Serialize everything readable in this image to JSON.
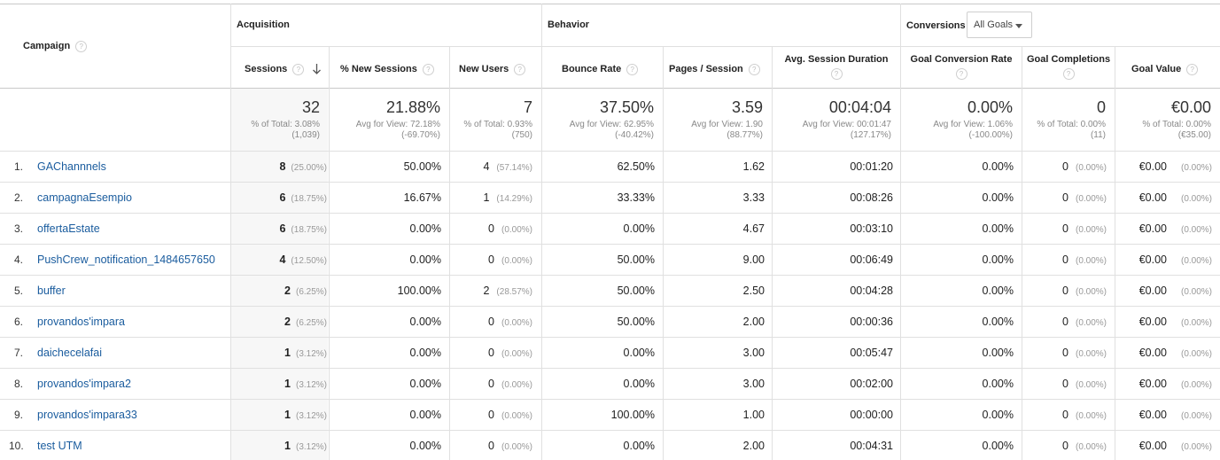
{
  "headers": {
    "campaign": "Campaign",
    "acquisition": "Acquisition",
    "behavior": "Behavior",
    "conversions": "Conversions",
    "goal_dropdown": "All Goals",
    "sessions": "Sessions",
    "new_sessions": "% New Sessions",
    "new_users": "New Users",
    "bounce_rate": "Bounce Rate",
    "pages_session": "Pages / Session",
    "avg_duration": "Avg. Session Duration",
    "goal_conv_rate": "Goal Conversion Rate",
    "goal_completions": "Goal Completions",
    "goal_value": "Goal Value"
  },
  "summary": {
    "sessions": {
      "value": "32",
      "line1": "% of Total: 3.08%",
      "line2": "(1,039)"
    },
    "new_sessions": {
      "value": "21.88%",
      "line1": "Avg for View: 72.18%",
      "line2": "(-69.70%)"
    },
    "new_users": {
      "value": "7",
      "line1": "% of Total: 0.93%",
      "line2": "(750)"
    },
    "bounce_rate": {
      "value": "37.50%",
      "line1": "Avg for View: 62.95%",
      "line2": "(-40.42%)"
    },
    "pages_session": {
      "value": "3.59",
      "line1": "Avg for View: 1.90",
      "line2": "(88.77%)"
    },
    "avg_duration": {
      "value": "00:04:04",
      "line1": "Avg for View: 00:01:47",
      "line2": "(127.17%)"
    },
    "goal_conv_rate": {
      "value": "0.00%",
      "line1": "Avg for View: 1.06%",
      "line2": "(-100.00%)"
    },
    "goal_completions": {
      "value": "0",
      "line1": "% of Total: 0.00%",
      "line2": "(11)"
    },
    "goal_value": {
      "value": "€0.00",
      "line1": "% of Total: 0.00%",
      "line2": "(€35.00)"
    }
  },
  "rows": [
    {
      "num": "1.",
      "campaign": "GAChannnels",
      "sessions": "8",
      "sessions_pct": "(25.00%)",
      "new_sessions": "50.00%",
      "new_users": "4",
      "new_users_pct": "(57.14%)",
      "bounce_rate": "62.50%",
      "pages_session": "1.62",
      "avg_duration": "00:01:20",
      "goal_conv_rate": "0.00%",
      "goal_completions": "0",
      "goal_completions_pct": "(0.00%)",
      "goal_value": "€0.00",
      "goal_value_pct": "(0.00%)"
    },
    {
      "num": "2.",
      "campaign": "campagnaEsempio",
      "sessions": "6",
      "sessions_pct": "(18.75%)",
      "new_sessions": "16.67%",
      "new_users": "1",
      "new_users_pct": "(14.29%)",
      "bounce_rate": "33.33%",
      "pages_session": "3.33",
      "avg_duration": "00:08:26",
      "goal_conv_rate": "0.00%",
      "goal_completions": "0",
      "goal_completions_pct": "(0.00%)",
      "goal_value": "€0.00",
      "goal_value_pct": "(0.00%)"
    },
    {
      "num": "3.",
      "campaign": "offertaEstate",
      "sessions": "6",
      "sessions_pct": "(18.75%)",
      "new_sessions": "0.00%",
      "new_users": "0",
      "new_users_pct": "(0.00%)",
      "bounce_rate": "0.00%",
      "pages_session": "4.67",
      "avg_duration": "00:03:10",
      "goal_conv_rate": "0.00%",
      "goal_completions": "0",
      "goal_completions_pct": "(0.00%)",
      "goal_value": "€0.00",
      "goal_value_pct": "(0.00%)"
    },
    {
      "num": "4.",
      "campaign": "PushCrew_notification_1484657650",
      "sessions": "4",
      "sessions_pct": "(12.50%)",
      "new_sessions": "0.00%",
      "new_users": "0",
      "new_users_pct": "(0.00%)",
      "bounce_rate": "50.00%",
      "pages_session": "9.00",
      "avg_duration": "00:06:49",
      "goal_conv_rate": "0.00%",
      "goal_completions": "0",
      "goal_completions_pct": "(0.00%)",
      "goal_value": "€0.00",
      "goal_value_pct": "(0.00%)"
    },
    {
      "num": "5.",
      "campaign": "buffer",
      "sessions": "2",
      "sessions_pct": "(6.25%)",
      "new_sessions": "100.00%",
      "new_users": "2",
      "new_users_pct": "(28.57%)",
      "bounce_rate": "50.00%",
      "pages_session": "2.50",
      "avg_duration": "00:04:28",
      "goal_conv_rate": "0.00%",
      "goal_completions": "0",
      "goal_completions_pct": "(0.00%)",
      "goal_value": "€0.00",
      "goal_value_pct": "(0.00%)"
    },
    {
      "num": "6.",
      "campaign": "provandos'impara",
      "sessions": "2",
      "sessions_pct": "(6.25%)",
      "new_sessions": "0.00%",
      "new_users": "0",
      "new_users_pct": "(0.00%)",
      "bounce_rate": "50.00%",
      "pages_session": "2.00",
      "avg_duration": "00:00:36",
      "goal_conv_rate": "0.00%",
      "goal_completions": "0",
      "goal_completions_pct": "(0.00%)",
      "goal_value": "€0.00",
      "goal_value_pct": "(0.00%)"
    },
    {
      "num": "7.",
      "campaign": "daichecelafai",
      "sessions": "1",
      "sessions_pct": "(3.12%)",
      "new_sessions": "0.00%",
      "new_users": "0",
      "new_users_pct": "(0.00%)",
      "bounce_rate": "0.00%",
      "pages_session": "3.00",
      "avg_duration": "00:05:47",
      "goal_conv_rate": "0.00%",
      "goal_completions": "0",
      "goal_completions_pct": "(0.00%)",
      "goal_value": "€0.00",
      "goal_value_pct": "(0.00%)"
    },
    {
      "num": "8.",
      "campaign": "provandos'impara2",
      "sessions": "1",
      "sessions_pct": "(3.12%)",
      "new_sessions": "0.00%",
      "new_users": "0",
      "new_users_pct": "(0.00%)",
      "bounce_rate": "0.00%",
      "pages_session": "3.00",
      "avg_duration": "00:02:00",
      "goal_conv_rate": "0.00%",
      "goal_completions": "0",
      "goal_completions_pct": "(0.00%)",
      "goal_value": "€0.00",
      "goal_value_pct": "(0.00%)"
    },
    {
      "num": "9.",
      "campaign": "provandos'impara33",
      "sessions": "1",
      "sessions_pct": "(3.12%)",
      "new_sessions": "0.00%",
      "new_users": "0",
      "new_users_pct": "(0.00%)",
      "bounce_rate": "100.00%",
      "pages_session": "1.00",
      "avg_duration": "00:00:00",
      "goal_conv_rate": "0.00%",
      "goal_completions": "0",
      "goal_completions_pct": "(0.00%)",
      "goal_value": "€0.00",
      "goal_value_pct": "(0.00%)"
    },
    {
      "num": "10.",
      "campaign": "test UTM",
      "sessions": "1",
      "sessions_pct": "(3.12%)",
      "new_sessions": "0.00%",
      "new_users": "0",
      "new_users_pct": "(0.00%)",
      "bounce_rate": "0.00%",
      "pages_session": "2.00",
      "avg_duration": "00:04:31",
      "goal_conv_rate": "0.00%",
      "goal_completions": "0",
      "goal_completions_pct": "(0.00%)",
      "goal_value": "€0.00",
      "goal_value_pct": "(0.00%)"
    }
  ],
  "icons": {
    "help": "help-icon",
    "sort": "sort-descending-arrow-icon",
    "dropdown": "dropdown-caret-icon"
  },
  "colors": {
    "link": "#1a5c9e",
    "selected_column_bg": "#f7f7f7",
    "border": "#e0e0e0"
  }
}
